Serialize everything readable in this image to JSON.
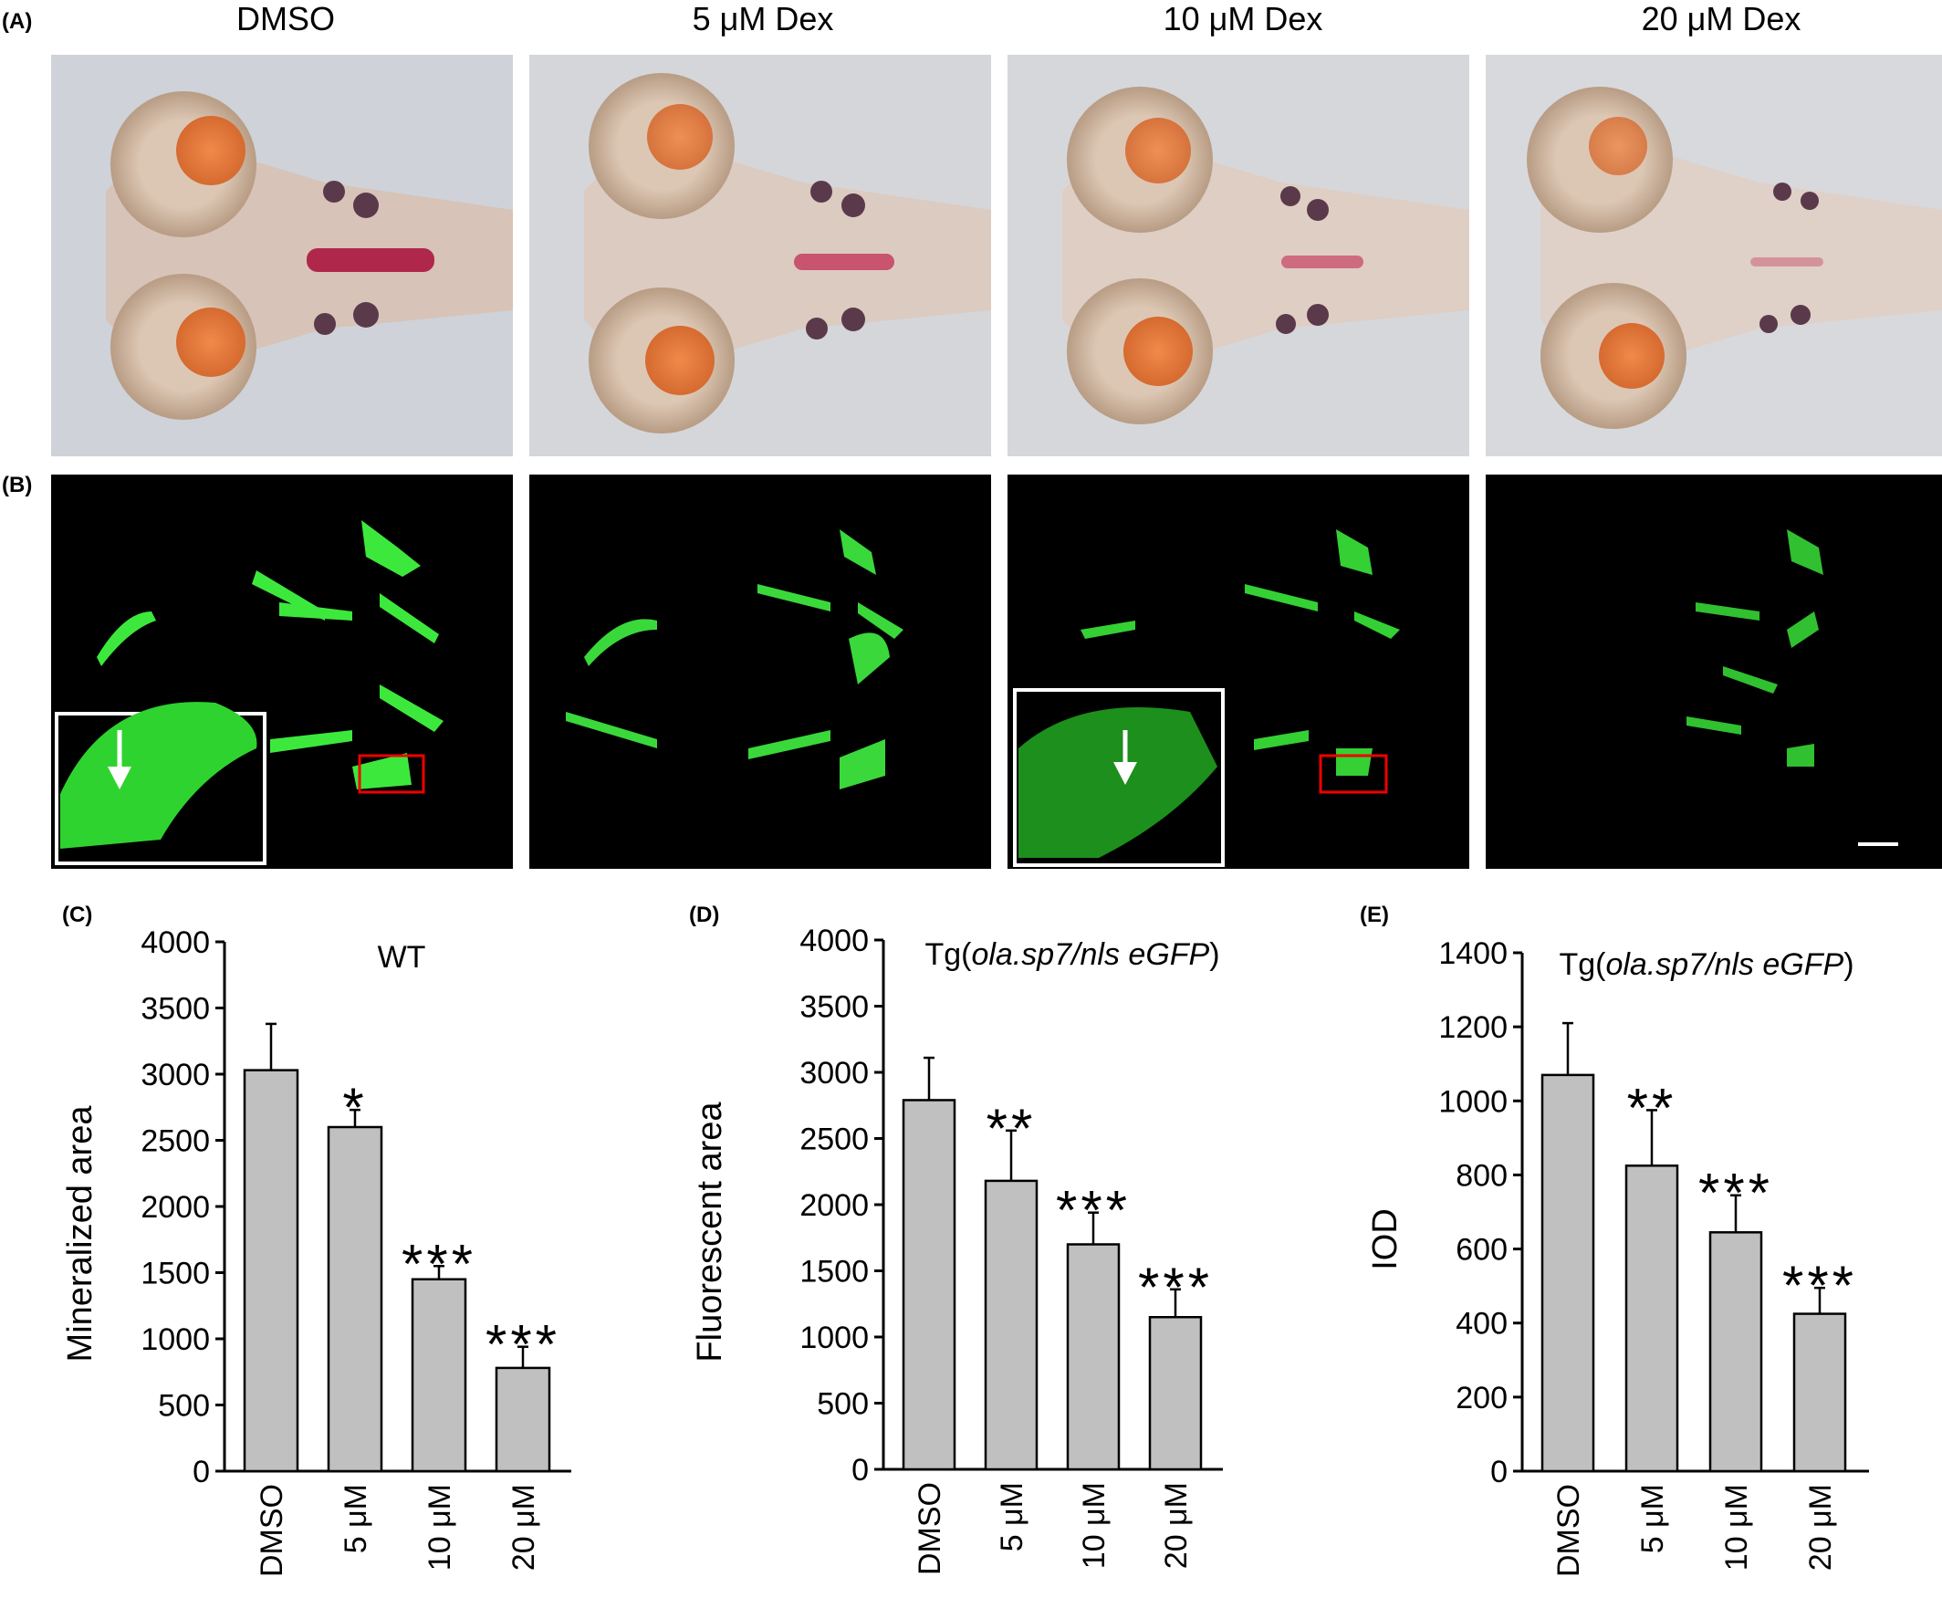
{
  "panel_labels": {
    "a": "(A)",
    "b": "(B)",
    "c": "(C)",
    "d": "(D)",
    "e": "(E)"
  },
  "columns": [
    "DMSO",
    "5 μM  Dex",
    "10 μM  Dex",
    "20 μM  Dex"
  ],
  "chart_data": [
    {
      "type": "bar",
      "panel": "(C)",
      "title": "WT",
      "ylabel": "Mineralized area",
      "categories": [
        "DMSO",
        "5 μM",
        "10 μM",
        "20 μM"
      ],
      "values": [
        3030,
        2600,
        1450,
        780
      ],
      "errors": [
        350,
        130,
        100,
        160
      ],
      "significance": [
        "",
        "*",
        "***",
        "***"
      ],
      "ylim": [
        0,
        4000
      ],
      "yticks": [
        0,
        500,
        1000,
        1500,
        2000,
        2500,
        3000,
        3500,
        4000
      ]
    },
    {
      "type": "bar",
      "panel": "(D)",
      "title_prefix": "Tg(",
      "title_italic": "ola.sp7/nls eGFP",
      "title_suffix": ")",
      "ylabel": "Fluorescent area",
      "categories": [
        "DMSO",
        "5 μM",
        "10 μM",
        "20 μM"
      ],
      "values": [
        2790,
        2180,
        1700,
        1150
      ],
      "errors": [
        320,
        380,
        240,
        210
      ],
      "significance": [
        "",
        "**",
        "***",
        "***"
      ],
      "ylim": [
        0,
        4000
      ],
      "yticks": [
        0,
        500,
        1000,
        1500,
        2000,
        2500,
        3000,
        3500,
        4000
      ]
    },
    {
      "type": "bar",
      "panel": "(E)",
      "title_prefix": "Tg(",
      "title_italic": "ola.sp7/nls eGFP",
      "title_suffix": ")",
      "ylabel": "IOD",
      "categories": [
        "DMSO",
        "5 μM",
        "10 μM",
        "20 μM"
      ],
      "values": [
        1070,
        825,
        645,
        425
      ],
      "errors": [
        140,
        150,
        100,
        70
      ],
      "significance": [
        "",
        "**",
        "***",
        "***"
      ],
      "ylim": [
        0,
        1400
      ],
      "yticks": [
        0,
        200,
        400,
        600,
        800,
        1000,
        1200,
        1400
      ]
    }
  ]
}
